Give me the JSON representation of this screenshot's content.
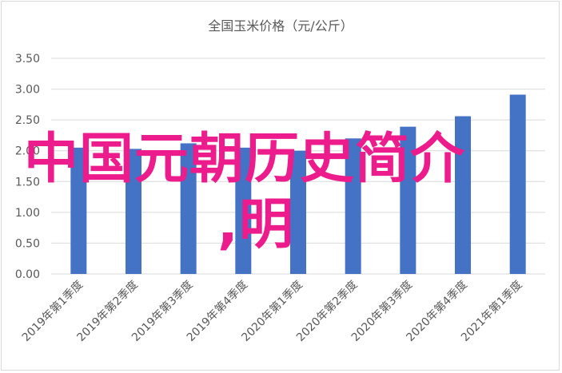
{
  "chart_data": {
    "type": "bar",
    "title": "全国玉米价格（元/公斤）",
    "categories": [
      "2019年第1季度",
      "2019年第2季度",
      "2019年第3季度",
      "2019年第4季度",
      "2020年第1季度",
      "2020年第2季度",
      "2020年第3季度",
      "2020年第4季度",
      "2021年第1季度"
    ],
    "values": [
      2.05,
      2.03,
      2.12,
      2.05,
      2.0,
      2.2,
      2.39,
      2.56,
      2.91
    ],
    "yticks": [
      "0.00",
      "0.50",
      "1.00",
      "1.50",
      "2.00",
      "2.50",
      "3.00",
      "3.50"
    ],
    "ylim": [
      0,
      3.5
    ],
    "grid": true,
    "bar_color": "#4472c4"
  },
  "overlay": {
    "line1": "中国元朝历史简介",
    "line2": ",明"
  }
}
